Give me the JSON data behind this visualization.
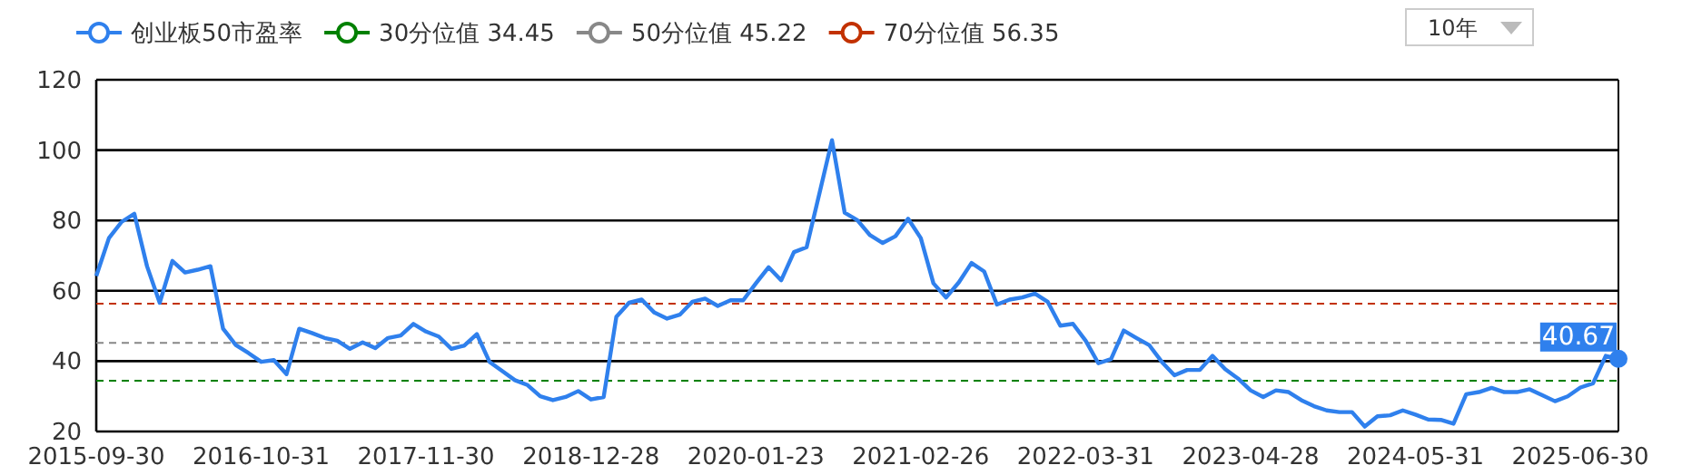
{
  "chart_data": {
    "type": "line",
    "categories": [
      "2015-09-30",
      null,
      null,
      null,
      null,
      null,
      null,
      null,
      null,
      null,
      null,
      null,
      null,
      "2016-10-31",
      null,
      null,
      null,
      null,
      null,
      null,
      null,
      null,
      null,
      null,
      null,
      null,
      "2017-11-30",
      null,
      null,
      null,
      null,
      null,
      null,
      null,
      null,
      null,
      null,
      null,
      null,
      "2018-12-28",
      null,
      null,
      null,
      null,
      null,
      null,
      null,
      null,
      null,
      null,
      null,
      null,
      "2020-01-23",
      null,
      null,
      null,
      null,
      null,
      null,
      null,
      null,
      null,
      null,
      null,
      null,
      "2021-02-26",
      null,
      null,
      null,
      null,
      null,
      null,
      null,
      null,
      null,
      null,
      null,
      null,
      "2022-03-31",
      null,
      null,
      null,
      null,
      null,
      null,
      null,
      null,
      null,
      null,
      null,
      null,
      "2023-04-28",
      null,
      null,
      null,
      null,
      null,
      null,
      null,
      null,
      null,
      null,
      null,
      null,
      "2024-05-31",
      null,
      null,
      null,
      null,
      null,
      null,
      null,
      null,
      null,
      null,
      null,
      null,
      "2025-06-30",
      null,
      null,
      null
    ],
    "series": [
      {
        "name": "创业板50市盈率",
        "color": "#2f80ed",
        "values": [
          64.2,
          75,
          79.6,
          81.9,
          67,
          56.6,
          68.5,
          65.2,
          66,
          67,
          49.2,
          44.6,
          42.3,
          39.8,
          40.3,
          36.3,
          49.2,
          48,
          46.6,
          45.8,
          43.5,
          45.3,
          43.7,
          46.6,
          47.3,
          50.6,
          48.4,
          47,
          43.5,
          44.4,
          47.7,
          39.8,
          37.2,
          34.6,
          33.2,
          30,
          28.9,
          29.8,
          31.5,
          29.1,
          29.8,
          52.6,
          56.6,
          57.5,
          53.8,
          52.1,
          53.2,
          56.9,
          57.8,
          55.7,
          57.3,
          57.3,
          62.1,
          66.7,
          63,
          71,
          72.4,
          87.5,
          102.8,
          82.2,
          80.1,
          75.8,
          73.6,
          75.5,
          80.5,
          75,
          62.1,
          58.1,
          62.4,
          67.9,
          65.5,
          56.1,
          57.5,
          58.1,
          59.2,
          56.9,
          50.1,
          50.6,
          45.8,
          39.4,
          40.6,
          48.7,
          46.6,
          44.6,
          39.8,
          36,
          37.5,
          37.5,
          41.5,
          37.7,
          35.1,
          31.7,
          29.8,
          31.7,
          31.2,
          28.9,
          27.2,
          26,
          25.5,
          25.5,
          21.4,
          24.3,
          24.6,
          26,
          24.8,
          23.4,
          23.3,
          22.2,
          30.6,
          31.2,
          32.4,
          31.2,
          31.2,
          32,
          30.3,
          28.6,
          30,
          32.5,
          33.7,
          41.5,
          40.67
        ]
      }
    ],
    "ref_lines": [
      {
        "axis": "y",
        "value": 34.45,
        "label": "30分位值 34.45",
        "color": "#008000",
        "line_style": "dashed"
      },
      {
        "axis": "y",
        "value": 45.22,
        "label": "50分位值 45.22",
        "color": "#888888",
        "line_style": "dashed"
      },
      {
        "axis": "y",
        "value": 56.35,
        "label": "70分位值 56.35",
        "color": "#c23100",
        "line_style": "dashed"
      }
    ],
    "annotations": [
      "40.67",
      "10年"
    ],
    "ylim": [
      20,
      120
    ],
    "yticks": [
      20,
      40,
      60,
      80,
      100,
      120
    ],
    "grid": "y",
    "legend": "top left",
    "marker": "none",
    "line_style": "solid"
  }
}
